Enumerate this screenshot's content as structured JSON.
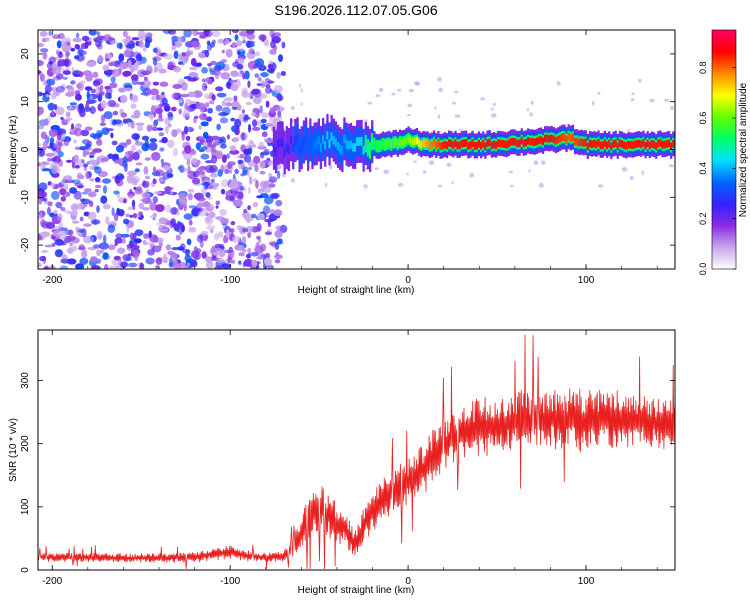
{
  "title": "S196.2026.112.07.05.G06",
  "chart_data": [
    {
      "type": "heatmap",
      "xlabel": "Height of straight line (km)",
      "ylabel": "Frequency (Hz)",
      "xlim": [
        -208,
        150
      ],
      "ylim": [
        -25,
        25
      ],
      "x_ticks": [
        -200,
        -100,
        0,
        100
      ],
      "y_ticks": [
        -20,
        -10,
        0,
        10,
        20
      ],
      "colorbar": {
        "label": "Normalized spectral amplitude",
        "range": [
          0.0,
          0.95
        ],
        "ticks": [
          0.0,
          0.2,
          0.4,
          0.6,
          0.8
        ],
        "tick_labels": [
          "0.0",
          "0.2",
          "0.4",
          "0.6",
          "0.8"
        ],
        "colors": [
          "#ffffff",
          "#c8a6ee",
          "#8a2be2",
          "#3322ff",
          "#0066ff",
          "#00e0ff",
          "#00ff66",
          "#66ff00",
          "#ffff00",
          "#ff8800",
          "#ff0000",
          "#ff0066"
        ]
      },
      "noise_region_x": [
        -208,
        -70
      ],
      "signal_ridge": {
        "x": [
          -75,
          -65,
          -55,
          -45,
          -38,
          -30,
          -20,
          -10,
          0,
          10,
          20,
          40,
          60,
          80,
          90,
          100,
          120,
          150
        ],
        "freq": [
          0,
          1,
          1,
          2,
          1,
          1,
          1,
          1,
          2,
          1,
          1,
          1,
          1.5,
          2,
          2.5,
          1,
          1,
          1
        ],
        "amplitude": [
          0.25,
          0.3,
          0.35,
          0.45,
          0.4,
          0.45,
          0.55,
          0.6,
          0.65,
          0.8,
          0.9,
          0.9,
          0.9,
          0.9,
          0.85,
          0.9,
          0.9,
          0.9
        ]
      }
    },
    {
      "type": "line",
      "xlabel": "Height of straight line (km)",
      "ylabel": "SNR (10 * v/v)",
      "xlim": [
        -208,
        150
      ],
      "ylim": [
        0,
        380
      ],
      "x_ticks": [
        -200,
        -100,
        0,
        100
      ],
      "y_ticks": [
        0,
        100,
        200,
        300
      ],
      "color": "#e82020",
      "series": [
        {
          "name": "SNR",
          "x": [
            -208,
            -200,
            -180,
            -160,
            -140,
            -120,
            -110,
            -100,
            -90,
            -80,
            -70,
            -65,
            -60,
            -55,
            -50,
            -45,
            -40,
            -35,
            -30,
            -25,
            -20,
            -15,
            -10,
            -5,
            0,
            5,
            10,
            15,
            20,
            30,
            40,
            50,
            60,
            70,
            80,
            90,
            100,
            110,
            120,
            130,
            140,
            150
          ],
          "mean": [
            20,
            20,
            20,
            19,
            19,
            20,
            25,
            28,
            22,
            20,
            22,
            35,
            60,
            90,
            100,
            85,
            75,
            65,
            40,
            70,
            90,
            110,
            125,
            135,
            140,
            150,
            165,
            185,
            200,
            215,
            225,
            230,
            235,
            235,
            240,
            240,
            235,
            240,
            238,
            235,
            232,
            230
          ],
          "spread": [
            8,
            10,
            10,
            10,
            10,
            12,
            14,
            15,
            12,
            10,
            12,
            22,
            40,
            50,
            55,
            50,
            45,
            40,
            30,
            40,
            45,
            50,
            55,
            55,
            55,
            55,
            60,
            60,
            60,
            65,
            70,
            70,
            70,
            70,
            70,
            75,
            70,
            70,
            65,
            60,
            60,
            55
          ]
        }
      ]
    }
  ]
}
